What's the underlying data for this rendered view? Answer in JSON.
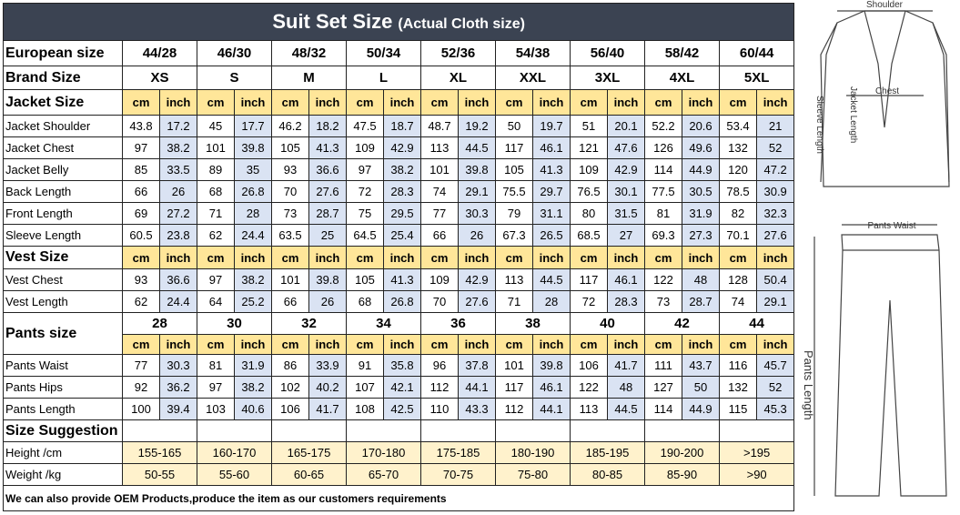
{
  "header": {
    "title": "Suit Set Size",
    "subtitle": "(Actual Cloth size)"
  },
  "european": {
    "label": "European size",
    "sizes": [
      "44/28",
      "46/30",
      "48/32",
      "50/34",
      "52/36",
      "54/38",
      "56/40",
      "58/42",
      "60/44"
    ]
  },
  "brand": {
    "label": "Brand Size",
    "sizes": [
      "XS",
      "S",
      "M",
      "L",
      "XL",
      "XXL",
      "3XL",
      "4XL",
      "5XL"
    ]
  },
  "units": [
    "cm",
    "inch"
  ],
  "jacket": {
    "label": "Jacket Size",
    "rows": [
      {
        "label": "Jacket Shoulder",
        "values": [
          43.8,
          17.2,
          45,
          17.7,
          46.2,
          18.2,
          47.5,
          18.7,
          48.7,
          19.2,
          50,
          19.7,
          51,
          20.1,
          52.2,
          20.6,
          53.4,
          21
        ]
      },
      {
        "label": "Jacket Chest",
        "values": [
          97,
          38.2,
          101,
          39.8,
          105,
          41.3,
          109,
          42.9,
          113,
          44.5,
          117,
          46.1,
          121,
          47.6,
          126,
          49.6,
          132,
          52
        ]
      },
      {
        "label": "Jacket Belly",
        "values": [
          85,
          33.5,
          89,
          35,
          93,
          36.6,
          97,
          38.2,
          101,
          39.8,
          105,
          41.3,
          109,
          42.9,
          114,
          44.9,
          120,
          47.2
        ]
      },
      {
        "label": "Back Length",
        "values": [
          66,
          26,
          68,
          26.8,
          70,
          27.6,
          72,
          28.3,
          74,
          29.1,
          75.5,
          29.7,
          76.5,
          30.1,
          77.5,
          30.5,
          78.5,
          30.9
        ]
      },
      {
        "label": "Front Length",
        "values": [
          69,
          27.2,
          71,
          28,
          73,
          28.7,
          75,
          29.5,
          77,
          30.3,
          79,
          31.1,
          80,
          31.5,
          81,
          31.9,
          82,
          32.3
        ]
      },
      {
        "label": "Sleeve Length",
        "values": [
          60.5,
          23.8,
          62,
          24.4,
          63.5,
          25,
          64.5,
          25.4,
          66,
          26,
          67.3,
          26.5,
          68.5,
          27,
          69.3,
          27.3,
          70.1,
          27.6
        ]
      }
    ]
  },
  "vest": {
    "label": "Vest Size",
    "rows": [
      {
        "label": "Vest Chest",
        "values": [
          93,
          36.6,
          97,
          38.2,
          101,
          39.8,
          105,
          41.3,
          109,
          42.9,
          113,
          44.5,
          117,
          46.1,
          122,
          48,
          128,
          50.4
        ]
      },
      {
        "label": "Vest Length",
        "values": [
          62,
          24.4,
          64,
          25.2,
          66,
          26,
          68,
          26.8,
          70,
          27.6,
          71,
          28,
          72,
          28.3,
          73,
          28.7,
          74,
          29.1
        ]
      }
    ]
  },
  "pants": {
    "label": "Pants size",
    "sizes": [
      28,
      30,
      32,
      34,
      36,
      38,
      40,
      42,
      44
    ],
    "rows": [
      {
        "label": "Pants Waist",
        "values": [
          77,
          30.3,
          81,
          31.9,
          86,
          33.9,
          91,
          35.8,
          96,
          37.8,
          101,
          39.8,
          106,
          41.7,
          111,
          43.7,
          116,
          45.7
        ]
      },
      {
        "label": "Pants Hips",
        "values": [
          92,
          36.2,
          97,
          38.2,
          102,
          40.2,
          107,
          42.1,
          112,
          44.1,
          117,
          46.1,
          122,
          48,
          127,
          50,
          132,
          52
        ]
      },
      {
        "label": "Pants Length",
        "values": [
          100,
          39.4,
          103,
          40.6,
          106,
          41.7,
          108,
          42.5,
          110,
          43.3,
          112,
          44.1,
          113,
          44.5,
          114,
          44.9,
          115,
          45.3
        ]
      }
    ]
  },
  "suggestion": {
    "label": "Size Suggestion",
    "rows": [
      {
        "label": "Height /cm",
        "values": [
          "155-165",
          "160-170",
          "165-175",
          "170-180",
          "175-185",
          "180-190",
          "185-195",
          "190-200",
          ">195"
        ]
      },
      {
        "label": "Weight /kg",
        "values": [
          "50-55",
          "55-60",
          "60-65",
          "65-70",
          "70-75",
          "75-80",
          "80-85",
          "85-90",
          ">90"
        ]
      }
    ]
  },
  "footer": "We can also provide OEM Products,produce the item as our customers requirements",
  "diagram": {
    "shoulder": "Shoulder",
    "chest": "Chest",
    "sleeve_length": "Sleeve Length",
    "jacket_length": "Jacket Length",
    "pants_waist": "Pants Waist",
    "pants_length": "Pants Length"
  }
}
